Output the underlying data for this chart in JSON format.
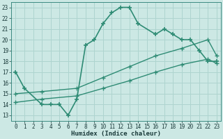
{
  "line1_x": [
    0,
    1,
    3,
    4,
    5,
    6,
    7,
    8,
    9,
    10,
    11,
    12,
    13,
    14,
    16,
    17,
    18,
    19,
    20,
    21,
    22,
    23
  ],
  "line1_y": [
    17,
    15.5,
    14,
    14,
    14,
    13,
    14.5,
    19.5,
    20,
    21.5,
    22.5,
    23,
    23,
    21.5,
    20.5,
    21,
    20.5,
    20,
    20,
    19,
    18,
    18
  ],
  "line2_x": [
    0,
    3,
    7,
    10,
    13,
    16,
    19,
    22,
    23
  ],
  "line2_y": [
    15,
    15.2,
    15.5,
    16.5,
    17.5,
    18.5,
    19.2,
    20,
    18.5
  ],
  "line3_x": [
    0,
    3,
    7,
    10,
    13,
    16,
    19,
    22,
    23
  ],
  "line3_y": [
    14.2,
    14.5,
    14.8,
    15.5,
    16.2,
    17,
    17.7,
    18.2,
    17.8
  ],
  "line_color": "#2e8b74",
  "bg_color": "#cce8e4",
  "grid_color": "#aed4cf",
  "xlabel": "Humidex (Indice chaleur)",
  "xlim": [
    -0.5,
    23.5
  ],
  "ylim": [
    12.5,
    23.5
  ],
  "yticks": [
    13,
    14,
    15,
    16,
    17,
    18,
    19,
    20,
    21,
    22,
    23
  ],
  "xticks": [
    0,
    1,
    2,
    3,
    4,
    5,
    6,
    7,
    8,
    9,
    10,
    11,
    12,
    13,
    14,
    15,
    16,
    17,
    18,
    19,
    20,
    21,
    22,
    23
  ]
}
